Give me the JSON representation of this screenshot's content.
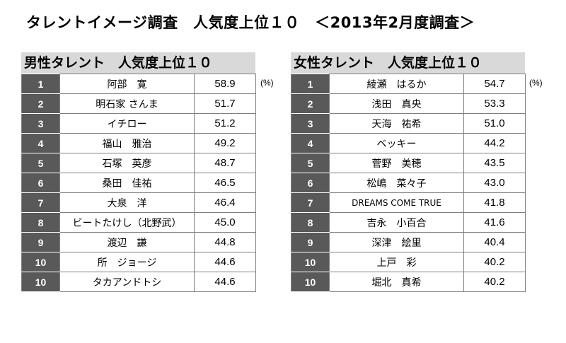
{
  "title": "タレントイメージ調査　人気度上位１０　＜2013年2月度調査＞",
  "unit": "(%)",
  "male": {
    "header": "男性タレント　人気度上位１０",
    "rows": [
      {
        "rank": "1",
        "name": "阿部　寛",
        "score": "58.9"
      },
      {
        "rank": "2",
        "name": "明石家 さんま",
        "score": "51.7"
      },
      {
        "rank": "3",
        "name": "イチロー",
        "score": "51.2"
      },
      {
        "rank": "4",
        "name": "福山　雅治",
        "score": "49.2"
      },
      {
        "rank": "5",
        "name": "石塚　英彦",
        "score": "48.7"
      },
      {
        "rank": "6",
        "name": "桑田　佳祐",
        "score": "46.5"
      },
      {
        "rank": "7",
        "name": "大泉　洋",
        "score": "46.4"
      },
      {
        "rank": "8",
        "name": "ビートたけし（北野武）",
        "score": "45.0"
      },
      {
        "rank": "9",
        "name": "渡辺　謙",
        "score": "44.8"
      },
      {
        "rank": "10",
        "name": "所　ジョージ",
        "score": "44.6"
      },
      {
        "rank": "10",
        "name": "タカアンドトシ",
        "score": "44.6"
      }
    ]
  },
  "female": {
    "header": "女性タレント　人気度上位１０",
    "rows": [
      {
        "rank": "1",
        "name": "綾瀬　はるか",
        "score": "54.7"
      },
      {
        "rank": "2",
        "name": "浅田　真央",
        "score": "53.3"
      },
      {
        "rank": "3",
        "name": "天海　祐希",
        "score": "51.0"
      },
      {
        "rank": "4",
        "name": "ベッキー",
        "score": "44.2"
      },
      {
        "rank": "5",
        "name": "菅野　美穂",
        "score": "43.5"
      },
      {
        "rank": "6",
        "name": "松嶋　菜々子",
        "score": "43.0"
      },
      {
        "rank": "7",
        "name": "DREAMS COME TRUE",
        "score": "41.8"
      },
      {
        "rank": "8",
        "name": "吉永　小百合",
        "score": "41.6"
      },
      {
        "rank": "9",
        "name": "深津　絵里",
        "score": "40.4"
      },
      {
        "rank": "10",
        "name": "上戸　彩",
        "score": "40.2"
      },
      {
        "rank": "10",
        "name": "堀北　真希",
        "score": "40.2"
      }
    ]
  }
}
